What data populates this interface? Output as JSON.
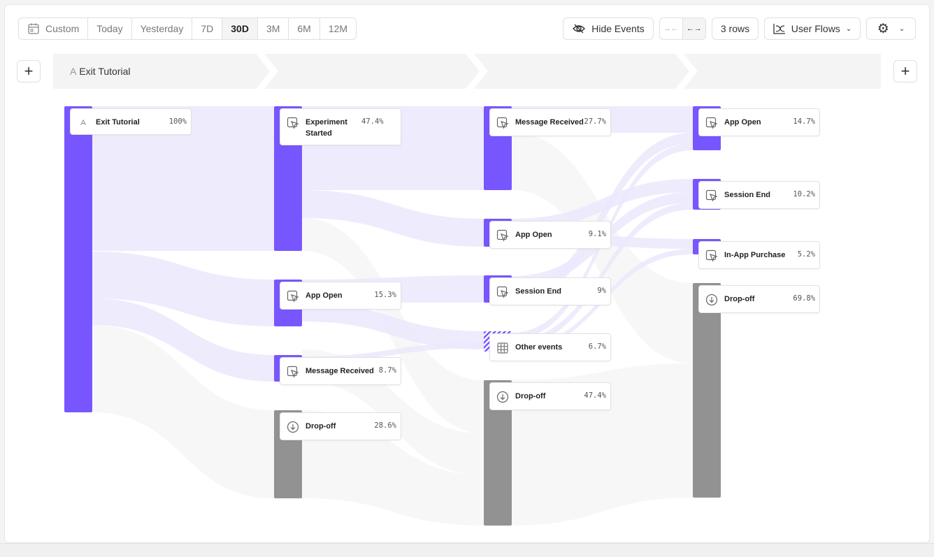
{
  "toolbar": {
    "date_ranges": [
      {
        "label": "Custom",
        "icon": "calendar-icon"
      },
      {
        "label": "Today"
      },
      {
        "label": "Yesterday"
      },
      {
        "label": "7D"
      },
      {
        "label": "30D",
        "active": true
      },
      {
        "label": "3M"
      },
      {
        "label": "6M"
      },
      {
        "label": "12M"
      }
    ],
    "hide_events": "Hide Events",
    "rows": "3 rows",
    "view": "User Flows"
  },
  "steps": {
    "anchor_letter": "A",
    "anchor_event": "Exit Tutorial"
  },
  "colors": {
    "accent": "#7856ff",
    "dropoff": "#929292",
    "link": "#ebe7fd",
    "drop_link": "#f6f6f6"
  },
  "columns": [
    [
      {
        "name": "Exit Tutorial",
        "pct": "100%",
        "icon": "letter-a-icon"
      }
    ],
    [
      {
        "name": "Experiment Started",
        "pct": "47.4%",
        "icon": "click-icon"
      },
      {
        "name": "App Open",
        "pct": "15.3%",
        "icon": "click-icon"
      },
      {
        "name": "Message Received",
        "pct": "8.7%",
        "icon": "click-icon"
      },
      {
        "name": "Drop-off",
        "pct": "28.6%",
        "icon": "dropoff-icon"
      }
    ],
    [
      {
        "name": "Message Received",
        "pct": "27.7%",
        "icon": "click-icon"
      },
      {
        "name": "App Open",
        "pct": "9.1%",
        "icon": "click-icon"
      },
      {
        "name": "Session End",
        "pct": "9%",
        "icon": "click-icon"
      },
      {
        "name": "Other events",
        "pct": "6.7%",
        "icon": "grid-icon"
      },
      {
        "name": "Drop-off",
        "pct": "47.4%",
        "icon": "dropoff-icon"
      }
    ],
    [
      {
        "name": "App Open",
        "pct": "14.7%",
        "icon": "click-icon"
      },
      {
        "name": "Session End",
        "pct": "10.2%",
        "icon": "click-icon"
      },
      {
        "name": "In-App Purchase",
        "pct": "5.2%",
        "icon": "click-icon"
      },
      {
        "name": "Drop-off",
        "pct": "69.8%",
        "icon": "dropoff-icon"
      }
    ]
  ]
}
